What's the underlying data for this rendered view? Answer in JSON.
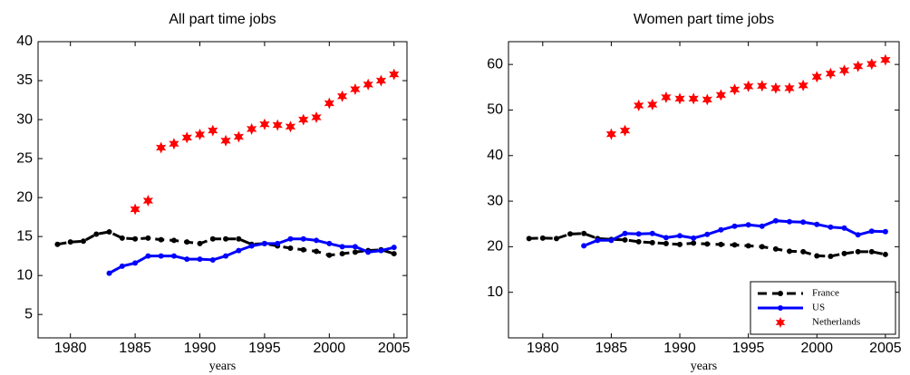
{
  "chart_data": [
    {
      "type": "line",
      "title": "All part time jobs",
      "xlabel": "years",
      "x": [
        1979,
        1980,
        1981,
        1982,
        1983,
        1984,
        1985,
        1986,
        1987,
        1988,
        1989,
        1990,
        1991,
        1992,
        1993,
        1994,
        1995,
        1996,
        1997,
        1998,
        1999,
        2000,
        2001,
        2002,
        2003,
        2004,
        2005
      ],
      "xlim": [
        1977.5,
        2006
      ],
      "xticks": [
        1980,
        1985,
        1990,
        1995,
        2000,
        2005
      ],
      "ylim": [
        2,
        40
      ],
      "yticks": [
        5,
        10,
        15,
        20,
        25,
        30,
        35,
        40
      ],
      "series": [
        {
          "color": "#000000",
          "linestyle": "dashed",
          "marker": "dot",
          "values": [
            14.0,
            14.3,
            14.4,
            15.3,
            15.6,
            14.8,
            14.7,
            14.8,
            14.6,
            14.5,
            14.3,
            14.1,
            14.7,
            14.7,
            14.7,
            14.0,
            14.1,
            13.8,
            13.5,
            13.3,
            13.1,
            12.6,
            12.8,
            13.0,
            13.2,
            13.3,
            12.8
          ]
        },
        {
          "color": "#0000ff",
          "linestyle": "solid",
          "marker": "dot",
          "values": [
            null,
            null,
            null,
            null,
            10.3,
            11.2,
            11.6,
            12.5,
            12.5,
            12.5,
            12.1,
            12.1,
            12.0,
            12.5,
            13.2,
            13.8,
            14.1,
            14.1,
            14.7,
            14.7,
            14.5,
            14.1,
            13.7,
            13.7,
            13.0,
            13.2,
            13.6
          ]
        },
        {
          "color": "#ff0000",
          "linestyle": "none",
          "marker": "star",
          "values": [
            null,
            null,
            null,
            null,
            null,
            null,
            18.5,
            19.6,
            26.4,
            26.9,
            27.7,
            28.1,
            28.6,
            27.3,
            27.8,
            28.8,
            29.4,
            29.3,
            29.1,
            30.0,
            30.3,
            32.1,
            33.0,
            33.9,
            34.5,
            35.0,
            35.8
          ]
        }
      ]
    },
    {
      "type": "line",
      "title": "Women part time jobs",
      "xlabel": "years",
      "legend": "lower right",
      "x": [
        1979,
        1980,
        1981,
        1982,
        1983,
        1984,
        1985,
        1986,
        1987,
        1988,
        1989,
        1990,
        1991,
        1992,
        1993,
        1994,
        1995,
        1996,
        1997,
        1998,
        1999,
        2000,
        2001,
        2002,
        2003,
        2004,
        2005
      ],
      "xlim": [
        1977.5,
        2006
      ],
      "xticks": [
        1980,
        1985,
        1990,
        1995,
        2000,
        2005
      ],
      "ylim": [
        0,
        65
      ],
      "yticks": [
        10,
        20,
        30,
        40,
        50,
        60
      ],
      "series": [
        {
          "name": "France",
          "color": "#000000",
          "linestyle": "dashed",
          "marker": "dot",
          "values": [
            21.8,
            21.9,
            21.8,
            22.8,
            22.9,
            21.8,
            21.6,
            21.5,
            21.1,
            20.9,
            20.7,
            20.5,
            20.8,
            20.6,
            20.5,
            20.4,
            20.2,
            20.0,
            19.5,
            19.0,
            18.9,
            18.0,
            17.9,
            18.5,
            18.9,
            18.9,
            18.3
          ]
        },
        {
          "name": "US",
          "color": "#0000ff",
          "linestyle": "solid",
          "marker": "dot",
          "values": [
            null,
            null,
            null,
            null,
            20.2,
            21.4,
            21.4,
            22.9,
            22.8,
            22.9,
            22.0,
            22.4,
            21.9,
            22.7,
            23.7,
            24.5,
            24.8,
            24.5,
            25.7,
            25.5,
            25.4,
            24.9,
            24.3,
            24.1,
            22.6,
            23.4,
            23.3
          ]
        },
        {
          "name": "Netherlands",
          "color": "#ff0000",
          "linestyle": "none",
          "marker": "star",
          "values": [
            null,
            null,
            null,
            null,
            null,
            null,
            44.7,
            45.5,
            51.0,
            51.2,
            52.8,
            52.5,
            52.5,
            52.3,
            53.3,
            54.5,
            55.2,
            55.3,
            54.8,
            54.8,
            55.4,
            57.3,
            58.0,
            58.7,
            59.6,
            60.1,
            61.0
          ]
        }
      ]
    }
  ]
}
